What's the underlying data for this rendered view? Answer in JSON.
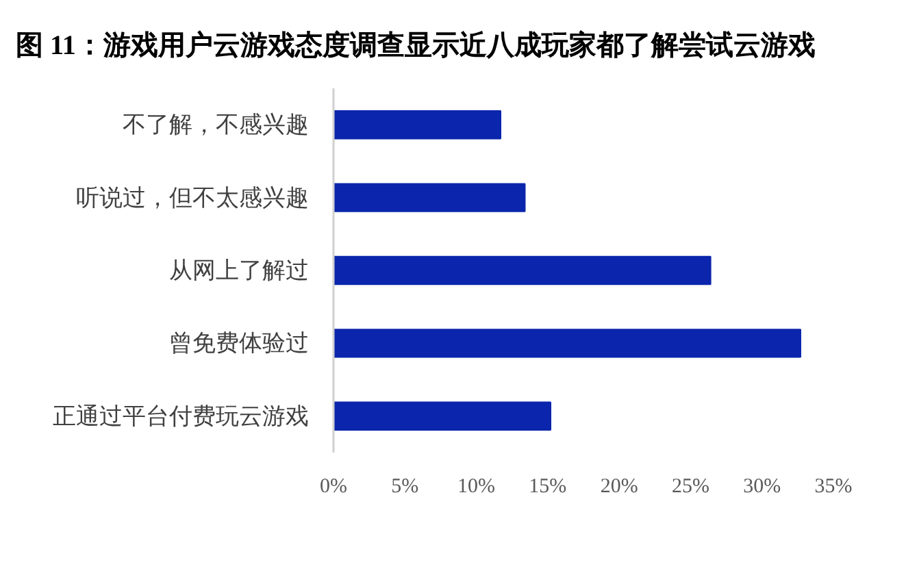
{
  "chart_data": {
    "type": "bar",
    "orientation": "horizontal",
    "title": "图 11：游戏用户云游戏态度调查显示近八成玩家都了解尝试云游戏",
    "categories": [
      "不了解，不感兴趣",
      "听说过，但不太感兴趣",
      "从网上了解过",
      "曾免费体验过",
      "正通过平台付费玩云游戏"
    ],
    "values": [
      11.7,
      13.4,
      26.4,
      32.7,
      15.2
    ],
    "color": "#0b26ac",
    "xlim": [
      0,
      35
    ],
    "xticks": [
      {
        "value": 0,
        "label": "0%"
      },
      {
        "value": 5,
        "label": "5%"
      },
      {
        "value": 10,
        "label": "10%"
      },
      {
        "value": 15,
        "label": "15%"
      },
      {
        "value": 20,
        "label": "20%"
      },
      {
        "value": 25,
        "label": "25%"
      },
      {
        "value": 30,
        "label": "30%"
      },
      {
        "value": 35,
        "label": "35%"
      }
    ],
    "grid": false
  }
}
